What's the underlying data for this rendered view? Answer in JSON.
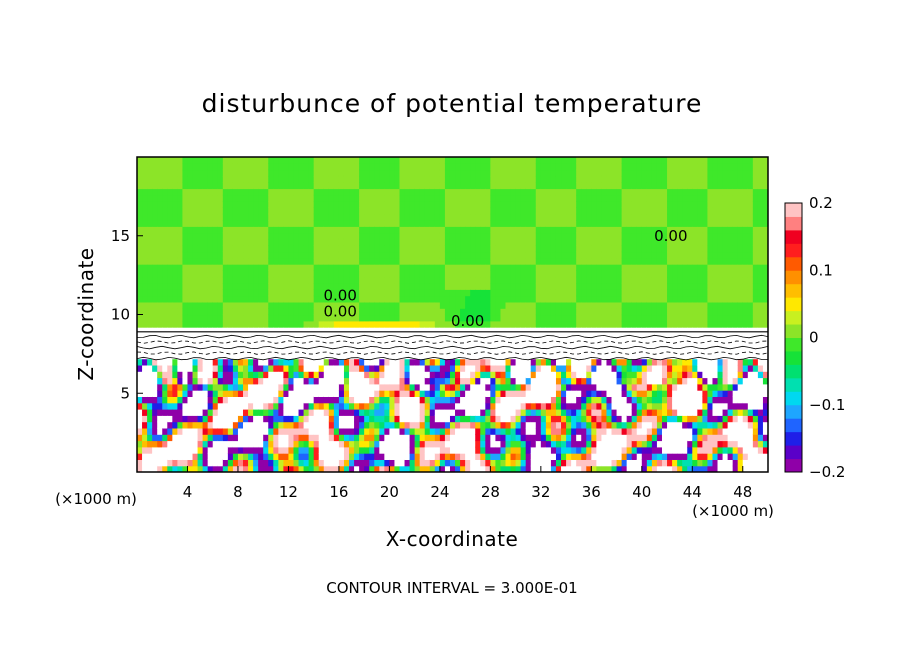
{
  "chart_data": {
    "type": "heatmap",
    "title": "disturbunce of potential temperature",
    "xlabel": "X-coordinate",
    "ylabel": "Z-coordinate",
    "x_unit": "(×1000 m)",
    "y_unit": "(×1000 m)",
    "xlim": [
      0,
      50
    ],
    "ylim": [
      0,
      20
    ],
    "x_ticks": [
      4,
      8,
      12,
      16,
      20,
      24,
      28,
      32,
      36,
      40,
      44,
      48
    ],
    "y_ticks": [
      5,
      10,
      15
    ],
    "contour_label": "0.00",
    "contour_labels": [
      {
        "x": 42.3,
        "z": 15.0
      },
      {
        "x": 26.2,
        "z": 9.6
      },
      {
        "x": 16.1,
        "z": 11.2
      },
      {
        "x": 16.1,
        "z": 10.2
      }
    ],
    "colorbar": {
      "min": -0.2,
      "max": 0.2,
      "tick_labels": [
        "0.2",
        "0.1",
        "0",
        "−0.1",
        "−0.2"
      ],
      "tick_values": [
        0.2,
        0.1,
        0,
        -0.1,
        -0.2
      ],
      "colors": [
        "#8f00a8",
        "#5a00c8",
        "#1f1fe8",
        "#1f64ff",
        "#1ea6ff",
        "#00d8f0",
        "#00e0b0",
        "#00e070",
        "#16e238",
        "#3fe82a",
        "#8ce428",
        "#c8f020",
        "#ffe800",
        "#ffbe00",
        "#ff9000",
        "#ff5a00",
        "#ff1e1e",
        "#f00020",
        "#ff8080",
        "#ffc4c4"
      ]
    },
    "contour_interval_note": "CONTOUR INTERVAL = 3.000E-01"
  }
}
